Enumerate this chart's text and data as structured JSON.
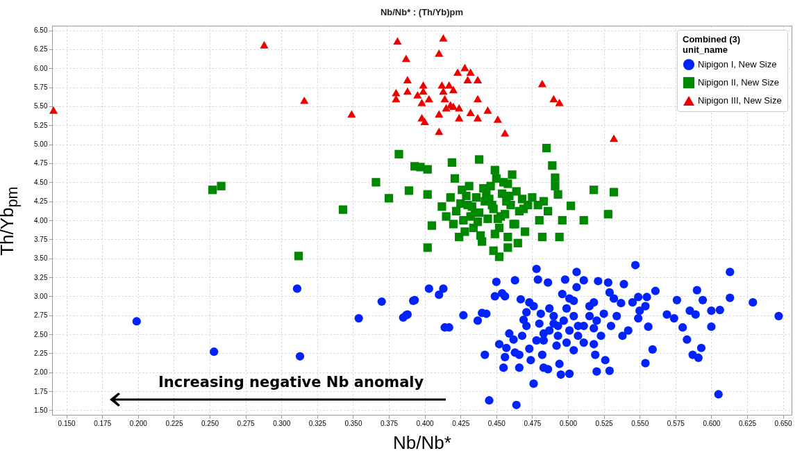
{
  "chart_data": {
    "type": "scatter",
    "title": "Nb/Nb* : (Th/Yb)pm",
    "xlabel": "Nb/Nb*",
    "ylabel": "Th/Yb$_{pm}$",
    "legend_title": "unit_name",
    "legend": "top right",
    "grid": true,
    "annotations": [
      "Increasing negative Nb anomaly",
      "Combined (3)"
    ],
    "xlim": [
      0.14,
      0.656
    ],
    "ylim": [
      1.44,
      6.56
    ],
    "xticks": [
      {
        "value": 0.15,
        "label": "0.150"
      },
      {
        "value": 0.175,
        "label": "0.175"
      },
      {
        "value": 0.2,
        "label": "0.200"
      },
      {
        "value": 0.225,
        "label": "0.225"
      },
      {
        "value": 0.25,
        "label": "0.250"
      },
      {
        "value": 0.275,
        "label": "0.275"
      },
      {
        "value": 0.3,
        "label": "0.300"
      },
      {
        "value": 0.325,
        "label": "0.325"
      },
      {
        "value": 0.35,
        "label": "0.350"
      },
      {
        "value": 0.375,
        "label": "0.375"
      },
      {
        "value": 0.4,
        "label": "0.400"
      },
      {
        "value": 0.425,
        "label": "0.425"
      },
      {
        "value": 0.45,
        "label": "0.450"
      },
      {
        "value": 0.475,
        "label": "0.475"
      },
      {
        "value": 0.5,
        "label": "0.500"
      },
      {
        "value": 0.525,
        "label": "0.525"
      },
      {
        "value": 0.55,
        "label": "0.550"
      },
      {
        "value": 0.575,
        "label": "0.575"
      },
      {
        "value": 0.6,
        "label": "0.600"
      },
      {
        "value": 0.625,
        "label": "0.625"
      },
      {
        "value": 0.65,
        "label": "0.650"
      }
    ],
    "yticks": [
      {
        "value": 1.5,
        "label": "1.50"
      },
      1.75,
      {
        "value": 2,
        "label": "2.00"
      },
      2.25,
      {
        "value": 2.5,
        "label": "2.50"
      },
      2.75,
      {
        "value": 3,
        "label": "3.00"
      },
      3.25,
      {
        "value": 3.5,
        "label": "3.50"
      },
      3.75,
      {
        "value": 4,
        "label": "4.00"
      },
      4.25,
      {
        "value": 4.5,
        "label": "4.50"
      },
      4.75,
      {
        "value": 5,
        "label": "5.00"
      },
      5.25,
      {
        "value": 5.5,
        "label": "5.50"
      },
      5.75,
      {
        "value": 6,
        "label": "6.00"
      },
      6.25,
      {
        "value": 6.5,
        "label": "6.50"
      }
    ],
    "series": [
      {
        "name": "Nipigon I, New Size",
        "color": "#0022ff",
        "marker": "circle",
        "x": [
          0.547,
          0.613,
          0.478,
          0.506,
          0.45,
          0.463,
          0.479,
          0.486,
          0.498,
          0.511,
          0.521,
          0.528,
          0.539,
          0.561,
          0.59,
          0.613,
          0.629,
          0.576,
          0.594,
          0.549,
          0.555,
          0.403,
          0.413,
          0.41,
          0.392,
          0.387,
          0.427,
          0.437,
          0.44,
          0.443,
          0.449,
          0.454,
          0.456,
          0.414,
          0.417,
          0.647,
          0.6,
          0.606,
          0.585,
          0.589,
          0.569,
          0.574,
          0.58,
          0.6,
          0.583,
          0.556,
          0.559,
          0.554,
          0.587,
          0.591,
          0.593,
          0.605,
          0.445,
          0.464,
          0.476,
          0.442,
          0.455,
          0.466,
          0.456,
          0.452,
          0.457,
          0.463,
          0.466,
          0.474,
          0.482,
          0.483,
          0.486,
          0.495,
          0.501,
          0.494,
          0.52,
          0.529,
          0.519,
          0.526,
          0.518,
          0.538,
          0.542,
          0.549,
          0.55,
          0.554,
          0.545,
          0.537,
          0.529,
          0.532,
          0.518,
          0.515,
          0.506,
          0.496,
          0.501,
          0.467,
          0.473,
          0.476,
          0.471,
          0.469,
          0.471,
          0.459,
          0.462,
          0.468,
          0.473,
          0.478,
          0.483,
          0.48,
          0.487,
          0.49,
          0.493,
          0.492,
          0.499,
          0.504,
          0.507,
          0.511,
          0.515,
          0.52,
          0.525,
          0.53,
          0.523,
          0.499,
          0.504,
          0.501,
          0.507,
          0.487,
          0.483,
          0.493,
          0.511,
          0.504,
          0.497,
          0.49,
          0.481,
          0.518,
          0.534,
          0.199,
          0.253,
          0.311,
          0.313,
          0.354,
          0.37,
          0.385,
          0.388,
          0.393
        ],
        "values": [
          3.41,
          3.32,
          3.36,
          3.32,
          3.19,
          3.21,
          3.22,
          3.18,
          3.22,
          3.21,
          3.2,
          3.18,
          3.16,
          3.07,
          3.08,
          2.98,
          2.92,
          2.95,
          2.95,
          2.99,
          2.99,
          3.1,
          3.1,
          3.02,
          2.94,
          2.75,
          2.75,
          2.68,
          2.78,
          2.77,
          3.0,
          3.04,
          3.0,
          2.59,
          2.59,
          2.74,
          2.81,
          2.82,
          2.81,
          2.76,
          2.76,
          2.71,
          2.59,
          2.6,
          2.43,
          2.6,
          2.3,
          2.12,
          2.23,
          2.19,
          2.32,
          1.71,
          1.63,
          1.57,
          1.85,
          2.23,
          2.06,
          2.06,
          2.2,
          2.37,
          2.32,
          2.26,
          2.23,
          2.16,
          2.23,
          2.06,
          2.04,
          1.97,
          1.98,
          2.11,
          2.01,
          2.02,
          2.23,
          2.16,
          2.37,
          2.48,
          2.55,
          2.71,
          2.81,
          2.87,
          2.92,
          2.91,
          3.05,
          2.97,
          2.92,
          2.87,
          3.12,
          3.03,
          2.97,
          2.96,
          2.92,
          2.87,
          2.79,
          2.69,
          2.61,
          2.51,
          2.43,
          2.48,
          2.31,
          2.42,
          2.51,
          2.64,
          2.84,
          2.74,
          2.61,
          2.35,
          2.39,
          2.29,
          2.48,
          2.61,
          2.74,
          2.68,
          2.77,
          2.61,
          2.48,
          2.84,
          2.74,
          2.55,
          2.61,
          2.55,
          2.42,
          2.48,
          2.39,
          2.94,
          2.68,
          2.64,
          2.77,
          2.58,
          2.74,
          2.67,
          2.27,
          3.1,
          2.21,
          2.71,
          2.93,
          2.72,
          2.76,
          2.95
        ]
      },
      {
        "name": "Nipigon II, New Size",
        "color": "#008800",
        "marker": "square",
        "x": [
          0.252,
          0.258,
          0.312,
          0.343,
          0.366,
          0.375,
          0.382,
          0.389,
          0.393,
          0.397,
          0.402,
          0.402,
          0.402,
          0.405,
          0.419,
          0.421,
          0.438,
          0.449,
          0.485,
          0.489,
          0.491,
          0.491,
          0.493,
          0.496,
          0.502,
          0.511,
          0.518,
          0.528,
          0.532,
          0.494,
          0.482,
          0.48,
          0.458,
          0.452,
          0.448,
          0.458,
          0.412,
          0.415,
          0.418,
          0.42,
          0.422,
          0.424,
          0.426,
          0.428,
          0.43,
          0.432,
          0.434,
          0.436,
          0.438,
          0.44,
          0.442,
          0.444,
          0.446,
          0.448,
          0.45,
          0.452,
          0.454,
          0.456,
          0.458,
          0.46,
          0.462,
          0.464,
          0.466,
          0.468,
          0.47,
          0.472,
          0.425,
          0.429,
          0.433,
          0.437,
          0.441,
          0.445,
          0.449,
          0.453,
          0.457,
          0.461,
          0.465,
          0.469,
          0.427,
          0.431,
          0.435,
          0.439,
          0.443,
          0.447,
          0.451,
          0.455,
          0.459,
          0.463,
          0.479,
          0.483,
          0.486,
          0.475
        ],
        "values": [
          4.4,
          4.45,
          3.53,
          4.14,
          4.5,
          4.29,
          4.87,
          4.39,
          4.71,
          4.7,
          4.67,
          4.34,
          3.64,
          3.93,
          4.76,
          4.55,
          4.8,
          4.66,
          4.95,
          4.72,
          4.56,
          4.45,
          4.34,
          4.0,
          4.19,
          4.0,
          4.4,
          4.08,
          4.37,
          3.78,
          3.78,
          4.0,
          3.64,
          3.52,
          3.6,
          3.78,
          4.18,
          4.05,
          4.3,
          3.95,
          4.12,
          3.78,
          4.4,
          3.85,
          4.2,
          4.05,
          3.9,
          4.3,
          4.1,
          3.72,
          4.25,
          4.02,
          4.45,
          4.15,
          4.55,
          3.9,
          4.35,
          4.08,
          4.48,
          4.2,
          3.95,
          4.38,
          4.12,
          4.28,
          3.85,
          4.2,
          4.22,
          4.32,
          4.18,
          3.98,
          4.42,
          4.28,
          3.82,
          4.05,
          4.25,
          4.6,
          3.7,
          4.15,
          4.0,
          4.45,
          4.1,
          3.8,
          4.35,
          4.2,
          4.02,
          4.5,
          4.32,
          3.95,
          4.2,
          4.25,
          4.12,
          4.3
        ]
      },
      {
        "name": "Nipigon III, New Size",
        "color": "#ee0000",
        "marker": "triangle",
        "x": [
          0.141,
          0.288,
          0.316,
          0.349,
          0.381,
          0.387,
          0.413,
          0.41,
          0.38,
          0.38,
          0.388,
          0.388,
          0.395,
          0.399,
          0.399,
          0.398,
          0.398,
          0.4,
          0.403,
          0.412,
          0.413,
          0.414,
          0.415,
          0.418,
          0.42,
          0.41,
          0.41,
          0.423,
          0.428,
          0.432,
          0.43,
          0.437,
          0.437,
          0.424,
          0.424,
          0.432,
          0.437,
          0.444,
          0.451,
          0.456,
          0.482,
          0.49,
          0.494,
          0.532,
          0.417,
          0.42
        ],
        "values": [
          5.45,
          6.31,
          5.58,
          5.4,
          6.36,
          6.13,
          6.4,
          6.2,
          5.68,
          5.6,
          5.85,
          5.7,
          5.65,
          5.78,
          5.7,
          5.55,
          5.35,
          5.3,
          5.6,
          5.78,
          5.7,
          5.6,
          5.48,
          5.52,
          5.5,
          5.4,
          5.17,
          5.95,
          6.01,
          5.95,
          5.85,
          5.85,
          5.6,
          5.48,
          5.35,
          5.42,
          5.35,
          5.45,
          5.33,
          5.15,
          5.8,
          5.6,
          5.55,
          5.08,
          5.78,
          5.72
        ]
      }
    ]
  }
}
